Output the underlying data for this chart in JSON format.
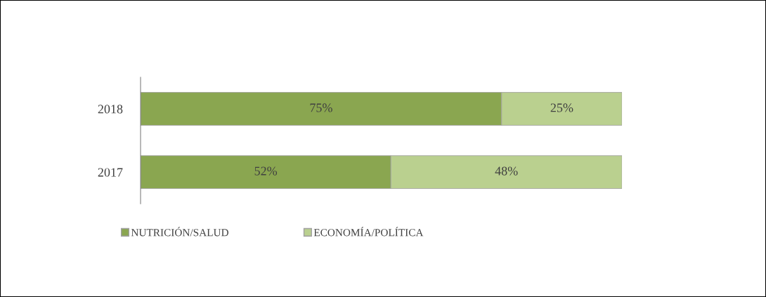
{
  "chart_data": {
    "type": "bar",
    "orientation": "horizontal",
    "stacked": true,
    "categories": [
      "2018",
      "2017"
    ],
    "series": [
      {
        "name": "NUTRICIÓN/SALUD",
        "color": "#8aa650",
        "values": [
          75,
          52
        ],
        "value_labels": [
          "75%",
          "52%"
        ]
      },
      {
        "name": "ECONOMÍA/POLÍTICA",
        "color": "#bad08f",
        "values": [
          25,
          48
        ],
        "value_labels": [
          "25%",
          "48%"
        ]
      }
    ],
    "legend": "bottom left"
  }
}
